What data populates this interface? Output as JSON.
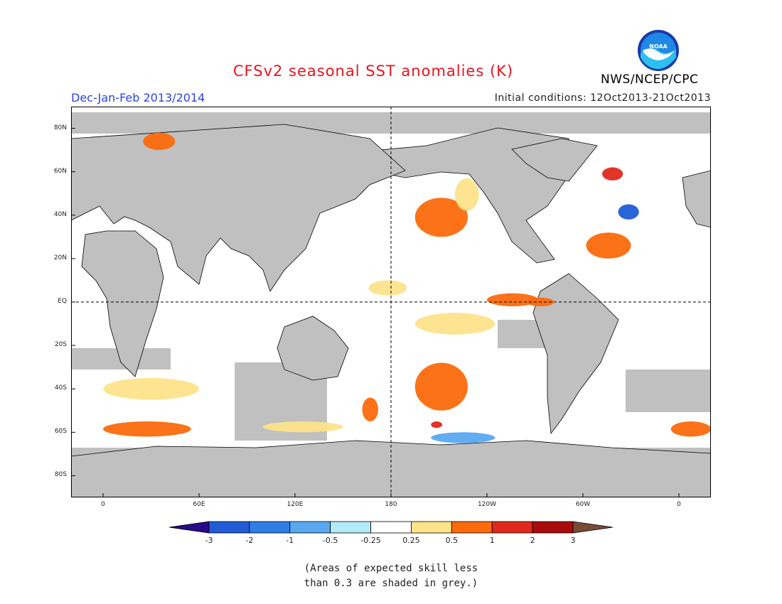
{
  "header": {
    "title": "CFSv2 seasonal SST anomalies (K)",
    "season": "Dec-Jan-Feb 2013/2014",
    "initial_conditions": "Initial conditions: 12Oct2013-21Oct2013",
    "agency": "NWS/NCEP/CPC",
    "logo_text": "NOAA"
  },
  "map": {
    "projection": "cylindrical equidistant",
    "lon_range": [
      -20,
      380
    ],
    "lat_range": [
      -90,
      90
    ],
    "lat_labels": [
      "80N",
      "60N",
      "40N",
      "20N",
      "EQ",
      "20S",
      "40S",
      "60S",
      "80S"
    ],
    "lat_values": [
      80,
      60,
      40,
      20,
      0,
      -20,
      -40,
      -60,
      -80
    ],
    "lon_labels": [
      "0",
      "60E",
      "120E",
      "180",
      "120W",
      "60W",
      "0"
    ],
    "lon_values": [
      0,
      60,
      120,
      180,
      240,
      300,
      360
    ],
    "reference_lines": [
      "EQ",
      "180"
    ],
    "land_color": "#c0c0c0",
    "ocean_color": "#ffffff"
  },
  "colorbar": {
    "tick_labels": [
      "-3",
      "-2",
      "-1",
      "-0.5",
      "-0.25",
      "0.25",
      "0.5",
      "1",
      "2",
      "3"
    ],
    "colors": [
      "#2a0a8c",
      "#1f5cd6",
      "#2f7ee8",
      "#5aa8f0",
      "#b3ecf8",
      "#ffffff",
      "#fde38a",
      "#fc6a0c",
      "#e0281e",
      "#a80c0c",
      "#7a4a38"
    ]
  },
  "chart_data": {
    "type": "heatmap",
    "title": "CFSv2 seasonal SST anomalies (K)",
    "subtitle": "Dec-Jan-Feb 2013/2014",
    "units": "K",
    "legend": "bottom",
    "grey_shading": "skill less than 0.3",
    "regions": [
      {
        "lon": [
          195,
          228
        ],
        "lat": [
          30,
          48
        ],
        "level": 1
      },
      {
        "lon": [
          220,
          235
        ],
        "lat": [
          42,
          57
        ],
        "level": 0.5
      },
      {
        "lon": [
          240,
          272
        ],
        "lat": [
          -2,
          4
        ],
        "level": 1
      },
      {
        "lon": [
          265,
          282
        ],
        "lat": [
          -2,
          2
        ],
        "level": 1
      },
      {
        "lon": [
          166,
          190
        ],
        "lat": [
          3,
          10
        ],
        "level": 0.5
      },
      {
        "lon": [
          195,
          228
        ],
        "lat": [
          -50,
          -28
        ],
        "level": 1
      },
      {
        "lon": [
          195,
          245
        ],
        "lat": [
          -15,
          -5
        ],
        "level": 0.5
      },
      {
        "lon": [
          162,
          172
        ],
        "lat": [
          -55,
          -44
        ],
        "level": 1
      },
      {
        "lon": [
          205,
          212
        ],
        "lat": [
          -58,
          -55
        ],
        "level": 2
      },
      {
        "lon": [
          302,
          330
        ],
        "lat": [
          20,
          32
        ],
        "level": 1
      },
      {
        "lon": [
          322,
          335
        ],
        "lat": [
          38,
          45
        ],
        "level": -2
      },
      {
        "lon": [
          312,
          325
        ],
        "lat": [
          56,
          62
        ],
        "level": 2
      },
      {
        "lon": [
          0,
          55
        ],
        "lat": [
          -62,
          -55
        ],
        "level": 1
      },
      {
        "lon": [
          355,
          380
        ],
        "lat": [
          -62,
          -55
        ],
        "level": 1
      },
      {
        "lon": [
          25,
          45
        ],
        "lat": [
          70,
          78
        ],
        "level": 1
      },
      {
        "lon": [
          205,
          245
        ],
        "lat": [
          -65,
          -60
        ],
        "level": -0.5
      },
      {
        "lon": [
          100,
          150
        ],
        "lat": [
          -60,
          -55
        ],
        "level": 0.5
      },
      {
        "lon": [
          0,
          60
        ],
        "lat": [
          -45,
          -35
        ],
        "level": 0.5
      }
    ]
  },
  "footnote": {
    "line1": "(Areas of expected skill less",
    "line2": "than 0.3 are shaded in grey.)"
  }
}
